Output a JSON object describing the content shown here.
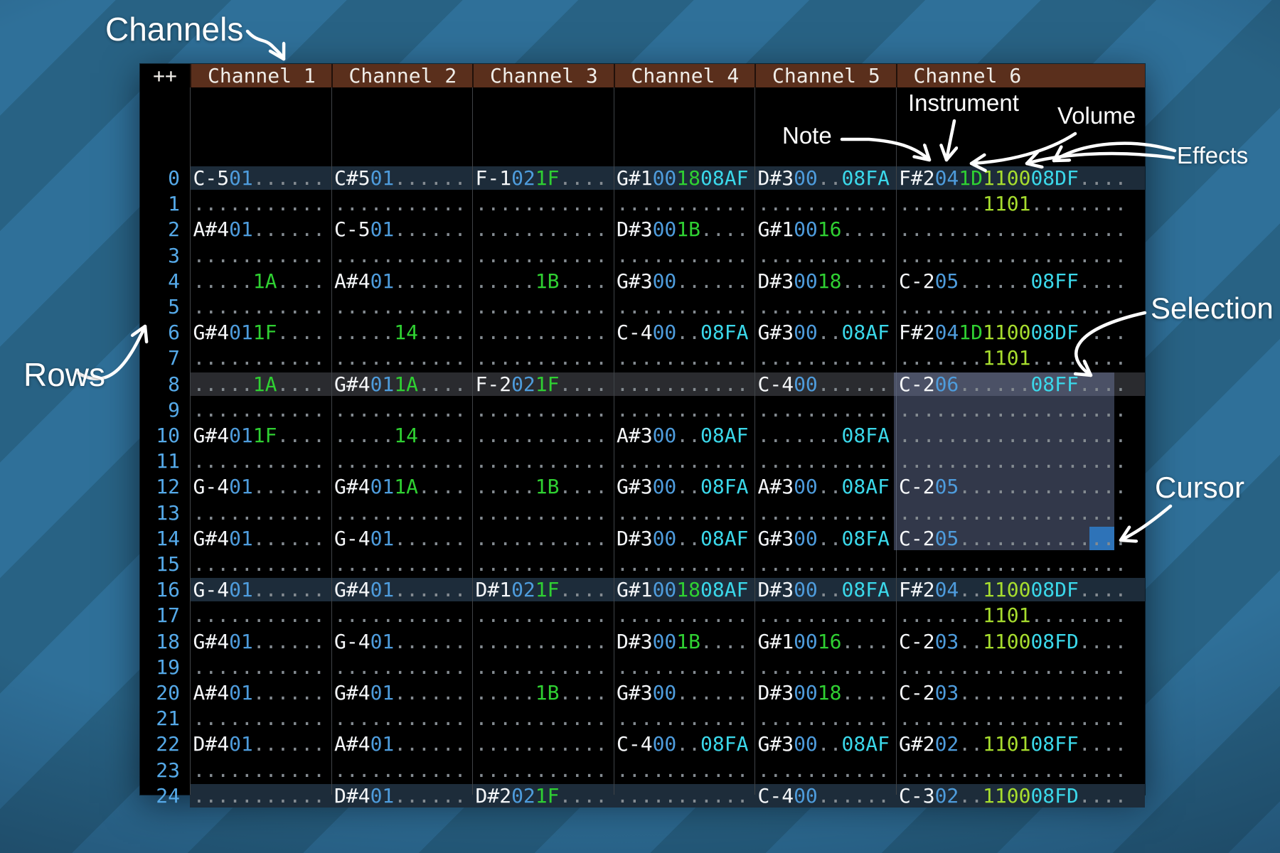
{
  "annotations": {
    "channels": "Channels",
    "rows": "Rows",
    "note": "Note",
    "instrument": "Instrument",
    "volume": "Volume",
    "effects": "Effects",
    "selection": "Selection",
    "cursor": "Cursor"
  },
  "header": {
    "corner": "++",
    "channels": [
      "Channel 1",
      "Channel 2",
      "Channel 3",
      "Channel 4",
      "Channel 5",
      "Channel 6"
    ]
  },
  "colors": {
    "note": "#f4f6f8",
    "instrument": "#4e9cdc",
    "volume": "#2fd032",
    "effect": "#3bd8ea",
    "effect_alt": "#a7dd2e",
    "dots": "#848b91",
    "row_number": "#55a9e8",
    "highlight_major": "#1d2c3a",
    "highlight_minor": "#2a2b2f",
    "header_bg": "#5a2f1c",
    "cursor": "#2e73b8"
  },
  "selection": {
    "channel": 6,
    "from_row": 8,
    "to_row": 14
  },
  "cursor": {
    "channel": 6,
    "row": 14
  },
  "pattern": {
    "rows": [
      {
        "n": 0,
        "hl": "major",
        "cells": [
          [
            "C-5",
            "01",
            "",
            ""
          ],
          [
            "C#5",
            "01",
            "",
            ""
          ],
          [
            "F-1",
            "02",
            "1F",
            ""
          ],
          [
            "G#1",
            "00",
            "18",
            "08AF"
          ],
          [
            "D#3",
            "00",
            "",
            "08FA"
          ],
          [
            "F#2",
            "04",
            "1D",
            "1100",
            "08DF"
          ]
        ]
      },
      {
        "n": 1,
        "hl": null,
        "cells": [
          [
            "",
            "",
            "",
            ""
          ],
          [
            "",
            "",
            "",
            ""
          ],
          [
            "",
            "",
            "",
            ""
          ],
          [
            "",
            "",
            "",
            ""
          ],
          [
            "",
            "",
            "",
            ""
          ],
          [
            "",
            "",
            "",
            "1101",
            ""
          ]
        ]
      },
      {
        "n": 2,
        "hl": null,
        "cells": [
          [
            "A#4",
            "01",
            "",
            ""
          ],
          [
            "C-5",
            "01",
            "",
            ""
          ],
          [
            "",
            "",
            "",
            ""
          ],
          [
            "D#3",
            "00",
            "1B",
            ""
          ],
          [
            "G#1",
            "00",
            "16",
            ""
          ],
          [
            "",
            "",
            "",
            "",
            ""
          ]
        ]
      },
      {
        "n": 3,
        "hl": null,
        "cells": [
          [
            "",
            "",
            "",
            ""
          ],
          [
            "",
            "",
            "",
            ""
          ],
          [
            "",
            "",
            "",
            ""
          ],
          [
            "",
            "",
            "",
            ""
          ],
          [
            "",
            "",
            "",
            ""
          ],
          [
            "",
            "",
            "",
            "",
            ""
          ]
        ]
      },
      {
        "n": 4,
        "hl": null,
        "cells": [
          [
            "",
            "",
            "1A",
            ""
          ],
          [
            "A#4",
            "01",
            "",
            ""
          ],
          [
            "",
            "",
            "1B",
            ""
          ],
          [
            "G#3",
            "00",
            "",
            ""
          ],
          [
            "D#3",
            "00",
            "18",
            ""
          ],
          [
            "C-2",
            "05",
            "",
            "",
            "08FF"
          ]
        ]
      },
      {
        "n": 5,
        "hl": null,
        "cells": [
          [
            "",
            "",
            "",
            ""
          ],
          [
            "",
            "",
            "",
            ""
          ],
          [
            "",
            "",
            "",
            ""
          ],
          [
            "",
            "",
            "",
            ""
          ],
          [
            "",
            "",
            "",
            ""
          ],
          [
            "",
            "",
            "",
            "",
            ""
          ]
        ]
      },
      {
        "n": 6,
        "hl": null,
        "cells": [
          [
            "G#4",
            "01",
            "1F",
            ""
          ],
          [
            "",
            "",
            "14",
            ""
          ],
          [
            "",
            "",
            "",
            ""
          ],
          [
            "C-4",
            "00",
            "",
            "08FA"
          ],
          [
            "G#3",
            "00",
            "",
            "08AF"
          ],
          [
            "F#2",
            "04",
            "1D",
            "1100",
            "08DF"
          ]
        ]
      },
      {
        "n": 7,
        "hl": null,
        "cells": [
          [
            "",
            "",
            "",
            ""
          ],
          [
            "",
            "",
            "",
            ""
          ],
          [
            "",
            "",
            "",
            ""
          ],
          [
            "",
            "",
            "",
            ""
          ],
          [
            "",
            "",
            "",
            ""
          ],
          [
            "",
            "",
            "",
            "1101",
            ""
          ]
        ]
      },
      {
        "n": 8,
        "hl": "minor",
        "cells": [
          [
            "",
            "",
            "1A",
            ""
          ],
          [
            "G#4",
            "01",
            "1A",
            ""
          ],
          [
            "F-2",
            "02",
            "1F",
            ""
          ],
          [
            "",
            "",
            "",
            ""
          ],
          [
            "C-4",
            "00",
            "",
            ""
          ],
          [
            "C-2",
            "06",
            "",
            "",
            "08FF"
          ]
        ]
      },
      {
        "n": 9,
        "hl": null,
        "cells": [
          [
            "",
            "",
            "",
            ""
          ],
          [
            "",
            "",
            "",
            ""
          ],
          [
            "",
            "",
            "",
            ""
          ],
          [
            "",
            "",
            "",
            ""
          ],
          [
            "",
            "",
            "",
            ""
          ],
          [
            "",
            "",
            "",
            "",
            ""
          ]
        ]
      },
      {
        "n": 10,
        "hl": null,
        "cells": [
          [
            "G#4",
            "01",
            "1F",
            ""
          ],
          [
            "",
            "",
            "14",
            ""
          ],
          [
            "",
            "",
            "",
            ""
          ],
          [
            "A#3",
            "00",
            "",
            "08AF"
          ],
          [
            "",
            "",
            "",
            "08FA"
          ],
          [
            "",
            "",
            "",
            "",
            ""
          ]
        ]
      },
      {
        "n": 11,
        "hl": null,
        "cells": [
          [
            "",
            "",
            "",
            ""
          ],
          [
            "",
            "",
            "",
            ""
          ],
          [
            "",
            "",
            "",
            ""
          ],
          [
            "",
            "",
            "",
            ""
          ],
          [
            "",
            "",
            "",
            ""
          ],
          [
            "",
            "",
            "",
            "",
            ""
          ]
        ]
      },
      {
        "n": 12,
        "hl": null,
        "cells": [
          [
            "G-4",
            "01",
            "",
            ""
          ],
          [
            "G#4",
            "01",
            "1A",
            ""
          ],
          [
            "",
            "",
            "1B",
            ""
          ],
          [
            "G#3",
            "00",
            "",
            "08FA"
          ],
          [
            "A#3",
            "00",
            "",
            "08AF"
          ],
          [
            "C-2",
            "05",
            "",
            "",
            ""
          ]
        ]
      },
      {
        "n": 13,
        "hl": null,
        "cells": [
          [
            "",
            "",
            "",
            ""
          ],
          [
            "",
            "",
            "",
            ""
          ],
          [
            "",
            "",
            "",
            ""
          ],
          [
            "",
            "",
            "",
            ""
          ],
          [
            "",
            "",
            "",
            ""
          ],
          [
            "",
            "",
            "",
            "",
            ""
          ]
        ]
      },
      {
        "n": 14,
        "hl": null,
        "cells": [
          [
            "G#4",
            "01",
            "",
            ""
          ],
          [
            "G-4",
            "01",
            "",
            ""
          ],
          [
            "",
            "",
            "",
            ""
          ],
          [
            "D#3",
            "00",
            "",
            "08AF"
          ],
          [
            "G#3",
            "00",
            "",
            "08FA"
          ],
          [
            "C-2",
            "05",
            "",
            "",
            ""
          ]
        ]
      },
      {
        "n": 15,
        "hl": null,
        "cells": [
          [
            "",
            "",
            "",
            ""
          ],
          [
            "",
            "",
            "",
            ""
          ],
          [
            "",
            "",
            "",
            ""
          ],
          [
            "",
            "",
            "",
            ""
          ],
          [
            "",
            "",
            "",
            ""
          ],
          [
            "",
            "",
            "",
            "",
            ""
          ]
        ]
      },
      {
        "n": 16,
        "hl": "major",
        "cells": [
          [
            "G-4",
            "01",
            "",
            ""
          ],
          [
            "G#4",
            "01",
            "",
            ""
          ],
          [
            "D#1",
            "02",
            "1F",
            ""
          ],
          [
            "G#1",
            "00",
            "18",
            "08AF"
          ],
          [
            "D#3",
            "00",
            "",
            "08FA"
          ],
          [
            "F#2",
            "04",
            "",
            "1100",
            "08DF"
          ]
        ]
      },
      {
        "n": 17,
        "hl": null,
        "cells": [
          [
            "",
            "",
            "",
            ""
          ],
          [
            "",
            "",
            "",
            ""
          ],
          [
            "",
            "",
            "",
            ""
          ],
          [
            "",
            "",
            "",
            ""
          ],
          [
            "",
            "",
            "",
            ""
          ],
          [
            "",
            "",
            "",
            "1101",
            ""
          ]
        ]
      },
      {
        "n": 18,
        "hl": null,
        "cells": [
          [
            "G#4",
            "01",
            "",
            ""
          ],
          [
            "G-4",
            "01",
            "",
            ""
          ],
          [
            "",
            "",
            "",
            ""
          ],
          [
            "D#3",
            "00",
            "1B",
            ""
          ],
          [
            "G#1",
            "00",
            "16",
            ""
          ],
          [
            "C-2",
            "03",
            "",
            "1100",
            "08FD"
          ]
        ]
      },
      {
        "n": 19,
        "hl": null,
        "cells": [
          [
            "",
            "",
            "",
            ""
          ],
          [
            "",
            "",
            "",
            ""
          ],
          [
            "",
            "",
            "",
            ""
          ],
          [
            "",
            "",
            "",
            ""
          ],
          [
            "",
            "",
            "",
            ""
          ],
          [
            "",
            "",
            "",
            "",
            ""
          ]
        ]
      },
      {
        "n": 20,
        "hl": null,
        "cells": [
          [
            "A#4",
            "01",
            "",
            ""
          ],
          [
            "G#4",
            "01",
            "",
            ""
          ],
          [
            "",
            "",
            "1B",
            ""
          ],
          [
            "G#3",
            "00",
            "",
            ""
          ],
          [
            "D#3",
            "00",
            "18",
            ""
          ],
          [
            "C-2",
            "03",
            "",
            "",
            ""
          ]
        ]
      },
      {
        "n": 21,
        "hl": null,
        "cells": [
          [
            "",
            "",
            "",
            ""
          ],
          [
            "",
            "",
            "",
            ""
          ],
          [
            "",
            "",
            "",
            ""
          ],
          [
            "",
            "",
            "",
            ""
          ],
          [
            "",
            "",
            "",
            ""
          ],
          [
            "",
            "",
            "",
            "",
            ""
          ]
        ]
      },
      {
        "n": 22,
        "hl": null,
        "cells": [
          [
            "D#4",
            "01",
            "",
            ""
          ],
          [
            "A#4",
            "01",
            "",
            ""
          ],
          [
            "",
            "",
            "",
            ""
          ],
          [
            "C-4",
            "00",
            "",
            "08FA"
          ],
          [
            "G#3",
            "00",
            "",
            "08AF"
          ],
          [
            "G#2",
            "02",
            "",
            "1101",
            "08FF"
          ]
        ]
      },
      {
        "n": 23,
        "hl": null,
        "cells": [
          [
            "",
            "",
            "",
            ""
          ],
          [
            "",
            "",
            "",
            ""
          ],
          [
            "",
            "",
            "",
            ""
          ],
          [
            "",
            "",
            "",
            ""
          ],
          [
            "",
            "",
            "",
            ""
          ],
          [
            "",
            "",
            "",
            "",
            ""
          ]
        ]
      },
      {
        "n": 24,
        "hl": "major",
        "cells": [
          [
            "",
            "",
            "",
            ""
          ],
          [
            "D#4",
            "01",
            "",
            ""
          ],
          [
            "D#2",
            "02",
            "1F",
            ""
          ],
          [
            "",
            "",
            "",
            ""
          ],
          [
            "C-4",
            "00",
            "",
            ""
          ],
          [
            "C-3",
            "02",
            "",
            "1100",
            "08FD"
          ]
        ]
      }
    ]
  }
}
